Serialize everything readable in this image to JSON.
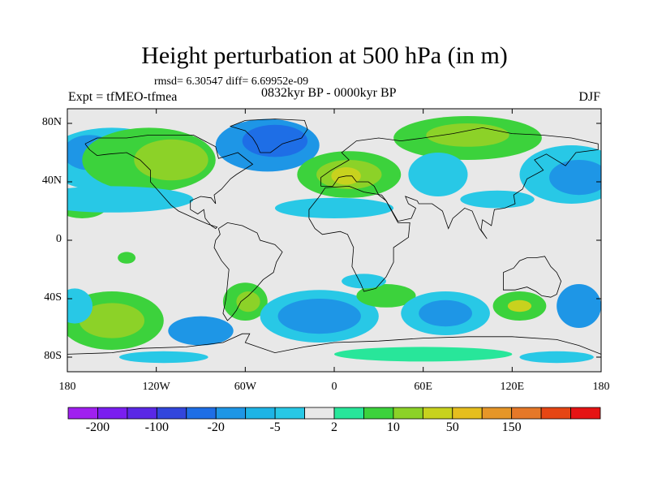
{
  "title": "Height perturbation at 500 hPa (in m)",
  "stats": "rmsd= 6.30547 diff= 6.69952e-09",
  "experiment": "Expt = tfMEO-tfmea",
  "period": "0832kyr BP - 0000kyr BP",
  "season": "DJF",
  "colors": {
    "background": "#e8e8e8",
    "coast": "#000000"
  },
  "y_ticks": [
    {
      "label": "80N",
      "lat": 80
    },
    {
      "label": "40N",
      "lat": 40
    },
    {
      "label": "0",
      "lat": 0
    },
    {
      "label": "40S",
      "lat": -40
    },
    {
      "label": "80S",
      "lat": -80
    }
  ],
  "x_ticks": [
    {
      "label": "180",
      "lon": -180
    },
    {
      "label": "120W",
      "lon": -120
    },
    {
      "label": "60W",
      "lon": -60
    },
    {
      "label": "0",
      "lon": 0
    },
    {
      "label": "60E",
      "lon": 60
    },
    {
      "label": "120E",
      "lon": 120
    },
    {
      "label": "180",
      "lon": 180
    }
  ],
  "colorbar": {
    "colors": [
      "#a020f0",
      "#7a1ef0",
      "#5a28e6",
      "#3246dc",
      "#1e6ee6",
      "#1e96e6",
      "#1eb4e6",
      "#28c8e6",
      "#e8e8e8",
      "#28e69a",
      "#3cd23c",
      "#8cd228",
      "#c8d21e",
      "#e6be1e",
      "#e69628",
      "#e67828",
      "#e64614",
      "#e61414"
    ],
    "labels": [
      {
        "text": "-200",
        "boundary": 1
      },
      {
        "text": "-100",
        "boundary": 3
      },
      {
        "text": "-20",
        "boundary": 5
      },
      {
        "text": "-5",
        "boundary": 7
      },
      {
        "text": "2",
        "boundary": 9
      },
      {
        "text": "10",
        "boundary": 11
      },
      {
        "text": "50",
        "boundary": 13
      },
      {
        "text": "150",
        "boundary": 15
      }
    ]
  },
  "field": [
    {
      "name": "north-pacific-blue-band",
      "lon": -150,
      "lat": 55,
      "rlon": 45,
      "rlat": 22,
      "color": "#28c8e6"
    },
    {
      "name": "north-pacific-blue-core",
      "lon": -165,
      "lat": 60,
      "rlon": 18,
      "rlat": 12,
      "color": "#1e96e6"
    },
    {
      "name": "north-america-green",
      "lon": -125,
      "lat": 55,
      "rlon": 45,
      "rlat": 22,
      "color": "#3cd23c"
    },
    {
      "name": "north-america-lime",
      "lon": -110,
      "lat": 55,
      "rlon": 25,
      "rlat": 14,
      "color": "#8cd228"
    },
    {
      "name": "west-pacific-green-lobe",
      "lon": -170,
      "lat": 25,
      "rlon": 18,
      "rlat": 10,
      "color": "#3cd23c"
    },
    {
      "name": "central-pacific-teal-band",
      "lon": -150,
      "lat": 28,
      "rlon": 55,
      "rlat": 9,
      "color": "#28c8e6"
    },
    {
      "name": "subtropic-atlantic-blue",
      "lon": 0,
      "lat": 22,
      "rlon": 40,
      "rlat": 7,
      "color": "#28c8e6"
    },
    {
      "name": "greenland-blue-low",
      "lon": -45,
      "lat": 65,
      "rlon": 35,
      "rlat": 18,
      "color": "#1e96e6"
    },
    {
      "name": "greenland-deep-low",
      "lon": -40,
      "lat": 68,
      "rlon": 22,
      "rlat": 11,
      "color": "#1e6ee6"
    },
    {
      "name": "europe-green-high",
      "lon": 10,
      "lat": 45,
      "rlon": 35,
      "rlat": 16,
      "color": "#3cd23c"
    },
    {
      "name": "europe-lime-high",
      "lon": 10,
      "lat": 45,
      "rlon": 22,
      "rlat": 10,
      "color": "#8cd228"
    },
    {
      "name": "europe-yellow-core",
      "lon": 8,
      "lat": 44,
      "rlon": 10,
      "rlat": 6,
      "color": "#c8d21e"
    },
    {
      "name": "siberia-green-ridge",
      "lon": 90,
      "lat": 70,
      "rlon": 50,
      "rlat": 15,
      "color": "#3cd23c"
    },
    {
      "name": "siberia-lime-ridge",
      "lon": 90,
      "lat": 72,
      "rlon": 28,
      "rlat": 8,
      "color": "#8cd228"
    },
    {
      "name": "asia-teal-trough",
      "lon": 70,
      "lat": 45,
      "rlon": 20,
      "rlat": 15,
      "color": "#28c8e6"
    },
    {
      "name": "west-pacific-low",
      "lon": 160,
      "lat": 45,
      "rlon": 35,
      "rlat": 20,
      "color": "#28c8e6"
    },
    {
      "name": "west-pacific-low-core",
      "lon": 165,
      "lat": 43,
      "rlon": 20,
      "rlat": 12,
      "color": "#1e96e6"
    },
    {
      "name": "southeast-asia-teal",
      "lon": 110,
      "lat": 28,
      "rlon": 25,
      "rlat": 6,
      "color": "#28c8e6"
    },
    {
      "name": "tropical-green-spot",
      "lon": -140,
      "lat": -12,
      "rlon": 6,
      "rlat": 4,
      "color": "#3cd23c"
    },
    {
      "name": "south-pacific-green-high",
      "lon": -150,
      "lat": -55,
      "rlon": 35,
      "rlat": 20,
      "color": "#3cd23c"
    },
    {
      "name": "south-pacific-lime-high",
      "lon": -150,
      "lat": -55,
      "rlon": 22,
      "rlat": 12,
      "color": "#8cd228"
    },
    {
      "name": "south-pacific-teal-edge",
      "lon": -175,
      "lat": -45,
      "rlon": 12,
      "rlat": 12,
      "color": "#28c8e6"
    },
    {
      "name": "southeast-pacific-low",
      "lon": -90,
      "lat": -62,
      "rlon": 22,
      "rlat": 10,
      "color": "#1e96e6"
    },
    {
      "name": "south-america-green",
      "lon": -60,
      "lat": -42,
      "rlon": 15,
      "rlat": 13,
      "color": "#3cd23c"
    },
    {
      "name": "south-america-lime",
      "lon": -58,
      "lat": -42,
      "rlon": 8,
      "rlat": 7,
      "color": "#8cd228"
    },
    {
      "name": "south-atlantic-low",
      "lon": -10,
      "lat": -52,
      "rlon": 40,
      "rlat": 18,
      "color": "#28c8e6"
    },
    {
      "name": "south-atlantic-low-core",
      "lon": -10,
      "lat": -52,
      "rlon": 28,
      "rlat": 12,
      "color": "#1e96e6"
    },
    {
      "name": "south-africa-green",
      "lon": 35,
      "lat": -38,
      "rlon": 20,
      "rlat": 8,
      "color": "#3cd23c"
    },
    {
      "name": "south-africa-teal",
      "lon": 20,
      "lat": -28,
      "rlon": 15,
      "rlat": 5,
      "color": "#28c8e6"
    },
    {
      "name": "indian-ocean-low",
      "lon": 75,
      "lat": -50,
      "rlon": 30,
      "rlat": 15,
      "color": "#28c8e6"
    },
    {
      "name": "indian-ocean-low-core",
      "lon": 75,
      "lat": -50,
      "rlon": 18,
      "rlat": 9,
      "color": "#1e96e6"
    },
    {
      "name": "australia-south-green",
      "lon": 125,
      "lat": -45,
      "rlon": 18,
      "rlat": 10,
      "color": "#3cd23c"
    },
    {
      "name": "australia-south-yellow",
      "lon": 125,
      "lat": -45,
      "rlon": 8,
      "rlat": 4,
      "color": "#c8d21e"
    },
    {
      "name": "southwest-pacific-low",
      "lon": 165,
      "lat": -45,
      "rlon": 15,
      "rlat": 15,
      "color": "#1e96e6"
    },
    {
      "name": "antarctic-green-band",
      "lon": 60,
      "lat": -78,
      "rlon": 60,
      "rlat": 5,
      "color": "#28e69a"
    },
    {
      "name": "antarctic-teal-west",
      "lon": -115,
      "lat": -80,
      "rlon": 30,
      "rlat": 4,
      "color": "#28c8e6"
    },
    {
      "name": "antarctic-teal-east",
      "lon": 150,
      "lat": -80,
      "rlon": 25,
      "rlat": 4,
      "color": "#28c8e6"
    }
  ],
  "coastlines": [
    {
      "name": "north-america-coast",
      "points": [
        [
          -168,
          66
        ],
        [
          -160,
          70
        ],
        [
          -140,
          70
        ],
        [
          -125,
          72
        ],
        [
          -95,
          72
        ],
        [
          -80,
          64
        ],
        [
          -78,
          56
        ],
        [
          -65,
          60
        ],
        [
          -55,
          52
        ],
        [
          -66,
          45
        ],
        [
          -70,
          42
        ],
        [
          -76,
          35
        ],
        [
          -81,
          31
        ],
        [
          -80,
          25
        ],
        [
          -83,
          29
        ],
        [
          -90,
          30
        ],
        [
          -97,
          27
        ],
        [
          -97,
          21
        ],
        [
          -92,
          18
        ],
        [
          -88,
          21
        ],
        [
          -87,
          15
        ],
        [
          -83,
          10
        ],
        [
          -80,
          8
        ],
        [
          -79,
          9
        ],
        [
          -85,
          11
        ],
        [
          -92,
          14
        ],
        [
          -105,
          20
        ],
        [
          -110,
          24
        ],
        [
          -117,
          32
        ],
        [
          -124,
          40
        ],
        [
          -124,
          48
        ],
        [
          -131,
          55
        ],
        [
          -140,
          60
        ],
        [
          -152,
          59
        ],
        [
          -160,
          58
        ],
        [
          -165,
          62
        ],
        [
          -168,
          66
        ]
      ]
    },
    {
      "name": "greenland-coast",
      "points": [
        [
          -50,
          60
        ],
        [
          -43,
          60
        ],
        [
          -35,
          66
        ],
        [
          -22,
          70
        ],
        [
          -18,
          76
        ],
        [
          -20,
          82
        ],
        [
          -40,
          83
        ],
        [
          -60,
          82
        ],
        [
          -70,
          78
        ],
        [
          -60,
          75
        ],
        [
          -55,
          70
        ],
        [
          -52,
          65
        ],
        [
          -50,
          60
        ]
      ]
    },
    {
      "name": "south-america-coast",
      "points": [
        [
          -78,
          8
        ],
        [
          -72,
          12
        ],
        [
          -62,
          10
        ],
        [
          -52,
          5
        ],
        [
          -50,
          0
        ],
        [
          -40,
          -3
        ],
        [
          -35,
          -8
        ],
        [
          -39,
          -15
        ],
        [
          -41,
          -22
        ],
        [
          -48,
          -27
        ],
        [
          -53,
          -33
        ],
        [
          -58,
          -38
        ],
        [
          -63,
          -42
        ],
        [
          -66,
          -48
        ],
        [
          -69,
          -52
        ],
        [
          -72,
          -55
        ],
        [
          -75,
          -50
        ],
        [
          -73,
          -40
        ],
        [
          -72,
          -30
        ],
        [
          -71,
          -20
        ],
        [
          -76,
          -14
        ],
        [
          -81,
          -5
        ],
        [
          -80,
          0
        ],
        [
          -77,
          4
        ],
        [
          -78,
          8
        ]
      ]
    },
    {
      "name": "africa-coast",
      "points": [
        [
          -17,
          15
        ],
        [
          -17,
          21
        ],
        [
          -10,
          30
        ],
        [
          -6,
          36
        ],
        [
          10,
          37
        ],
        [
          20,
          33
        ],
        [
          32,
          31
        ],
        [
          35,
          27
        ],
        [
          43,
          12
        ],
        [
          51,
          12
        ],
        [
          50,
          2
        ],
        [
          40,
          -5
        ],
        [
          40,
          -15
        ],
        [
          35,
          -25
        ],
        [
          28,
          -33
        ],
        [
          20,
          -35
        ],
        [
          18,
          -30
        ],
        [
          12,
          -18
        ],
        [
          13,
          -5
        ],
        [
          9,
          4
        ],
        [
          4,
          6
        ],
        [
          -8,
          4
        ],
        [
          -13,
          8
        ],
        [
          -17,
          15
        ]
      ]
    },
    {
      "name": "eurasia-coast",
      "points": [
        [
          -9,
          37
        ],
        [
          -9,
          43
        ],
        [
          -2,
          48
        ],
        [
          5,
          52
        ],
        [
          10,
          55
        ],
        [
          5,
          60
        ],
        [
          15,
          68
        ],
        [
          30,
          70
        ],
        [
          45,
          68
        ],
        [
          60,
          70
        ],
        [
          80,
          73
        ],
        [
          100,
          77
        ],
        [
          120,
          73
        ],
        [
          140,
          72
        ],
        [
          160,
          70
        ],
        [
          178,
          66
        ],
        [
          178,
          62
        ],
        [
          163,
          60
        ],
        [
          156,
          51
        ],
        [
          143,
          59
        ],
        [
          135,
          55
        ],
        [
          141,
          48
        ],
        [
          130,
          42
        ],
        [
          127,
          35
        ],
        [
          121,
          31
        ],
        [
          122,
          25
        ],
        [
          115,
          22
        ],
        [
          108,
          21
        ],
        [
          106,
          10
        ],
        [
          100,
          14
        ],
        [
          99,
          7
        ],
        [
          103,
          1
        ],
        [
          98,
          8
        ],
        [
          93,
          20
        ],
        [
          88,
          22
        ],
        [
          80,
          15
        ],
        [
          77,
          8
        ],
        [
          73,
          20
        ],
        [
          66,
          25
        ],
        [
          57,
          25
        ],
        [
          56,
          27
        ],
        [
          48,
          30
        ],
        [
          50,
          25
        ],
        [
          55,
          22
        ],
        [
          52,
          15
        ],
        [
          43,
          13
        ],
        [
          35,
          27
        ],
        [
          30,
          31
        ],
        [
          27,
          37
        ],
        [
          23,
          40
        ],
        [
          20,
          40
        ],
        [
          15,
          40
        ],
        [
          12,
          44
        ],
        [
          8,
          44
        ],
        [
          3,
          43
        ],
        [
          -1,
          37
        ],
        [
          -9,
          37
        ]
      ]
    },
    {
      "name": "australia-coast",
      "points": [
        [
          114,
          -22
        ],
        [
          114,
          -34
        ],
        [
          122,
          -34
        ],
        [
          130,
          -32
        ],
        [
          136,
          -35
        ],
        [
          140,
          -38
        ],
        [
          146,
          -39
        ],
        [
          150,
          -37
        ],
        [
          153,
          -28
        ],
        [
          150,
          -22
        ],
        [
          146,
          -18
        ],
        [
          142,
          -11
        ],
        [
          136,
          -12
        ],
        [
          130,
          -12
        ],
        [
          125,
          -14
        ],
        [
          121,
          -19
        ],
        [
          114,
          -22
        ]
      ]
    },
    {
      "name": "antarctica-coast",
      "points": [
        [
          -180,
          -78
        ],
        [
          -150,
          -77
        ],
        [
          -130,
          -74
        ],
        [
          -100,
          -73
        ],
        [
          -75,
          -70
        ],
        [
          -62,
          -64
        ],
        [
          -57,
          -64
        ],
        [
          -60,
          -70
        ],
        [
          -40,
          -77
        ],
        [
          -20,
          -73
        ],
        [
          0,
          -70
        ],
        [
          30,
          -69
        ],
        [
          60,
          -67
        ],
        [
          90,
          -66
        ],
        [
          120,
          -66
        ],
        [
          150,
          -68
        ],
        [
          165,
          -72
        ],
        [
          180,
          -78
        ]
      ]
    }
  ]
}
